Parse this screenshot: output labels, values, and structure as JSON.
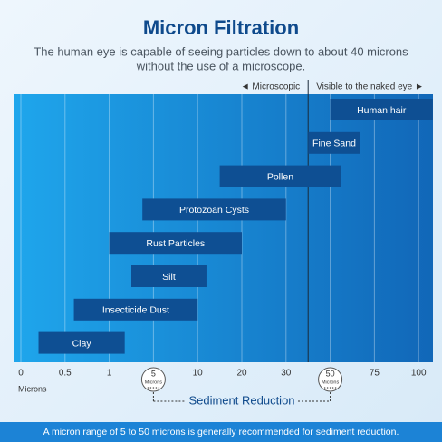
{
  "chart_data": {
    "type": "range-bar",
    "title": "Micron Filtration",
    "subtitle": [
      "The human eye is capable of seeing particles down to about 40 microns",
      "without the use of a microscope."
    ],
    "categories": [
      "Human hair",
      "Fine Sand",
      "Pollen",
      "Protozoan Cysts",
      "Rust Particles",
      "Silt",
      "Insecticide Dust",
      "Clay"
    ],
    "low": [
      50,
      40,
      15,
      4,
      1,
      3,
      0.6,
      0.2
    ],
    "high": [
      108,
      67,
      56,
      30,
      20,
      12,
      10,
      2.4
    ],
    "color": "#0e4f93",
    "xlim": [
      0,
      108
    ],
    "xticks": [
      0,
      0.5,
      1,
      5,
      10,
      20,
      30,
      50,
      75,
      100
    ],
    "x_label": "Microns",
    "threshold": {
      "value": 40,
      "left_label": "◄ Microscopic",
      "right_label": "Visible to the naked eye ►"
    },
    "bracket": {
      "from": 5,
      "to": 50,
      "label": "Sediment Reduction"
    },
    "note": "A micron range of 5 to 50 microns is generally recommended for sediment reduction."
  }
}
